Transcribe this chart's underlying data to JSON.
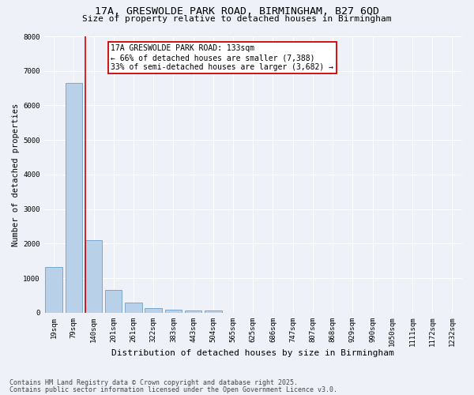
{
  "title_line1": "17A, GRESWOLDE PARK ROAD, BIRMINGHAM, B27 6QD",
  "title_line2": "Size of property relative to detached houses in Birmingham",
  "xlabel": "Distribution of detached houses by size in Birmingham",
  "ylabel": "Number of detached properties",
  "categories": [
    "19sqm",
    "79sqm",
    "140sqm",
    "201sqm",
    "261sqm",
    "322sqm",
    "383sqm",
    "443sqm",
    "504sqm",
    "565sqm",
    "625sqm",
    "686sqm",
    "747sqm",
    "807sqm",
    "868sqm",
    "929sqm",
    "990sqm",
    "1050sqm",
    "1111sqm",
    "1172sqm",
    "1232sqm"
  ],
  "values": [
    1320,
    6650,
    2100,
    650,
    300,
    130,
    80,
    60,
    70,
    0,
    0,
    0,
    0,
    0,
    0,
    0,
    0,
    0,
    0,
    0,
    0
  ],
  "bar_color": "#b8d0e8",
  "bar_edge_color": "#6aa0c8",
  "annotation_text": "17A GRESWOLDE PARK ROAD: 133sqm\n← 66% of detached houses are smaller (7,388)\n33% of semi-detached houses are larger (3,682) →",
  "annotation_box_color": "#ffffff",
  "annotation_border_color": "#cc0000",
  "vline_color": "#cc0000",
  "vline_x": 1.6,
  "ylim": [
    0,
    8000
  ],
  "yticks": [
    0,
    1000,
    2000,
    3000,
    4000,
    5000,
    6000,
    7000,
    8000
  ],
  "footer_line1": "Contains HM Land Registry data © Crown copyright and database right 2025.",
  "footer_line2": "Contains public sector information licensed under the Open Government Licence v3.0.",
  "background_color": "#eef2f8",
  "plot_bg_color": "#eef2f8",
  "grid_color": "#ffffff",
  "title_fontsize": 9.5,
  "subtitle_fontsize": 8,
  "tick_fontsize": 6.5,
  "ylabel_fontsize": 7.5,
  "xlabel_fontsize": 8,
  "annotation_fontsize": 7,
  "footer_fontsize": 6
}
